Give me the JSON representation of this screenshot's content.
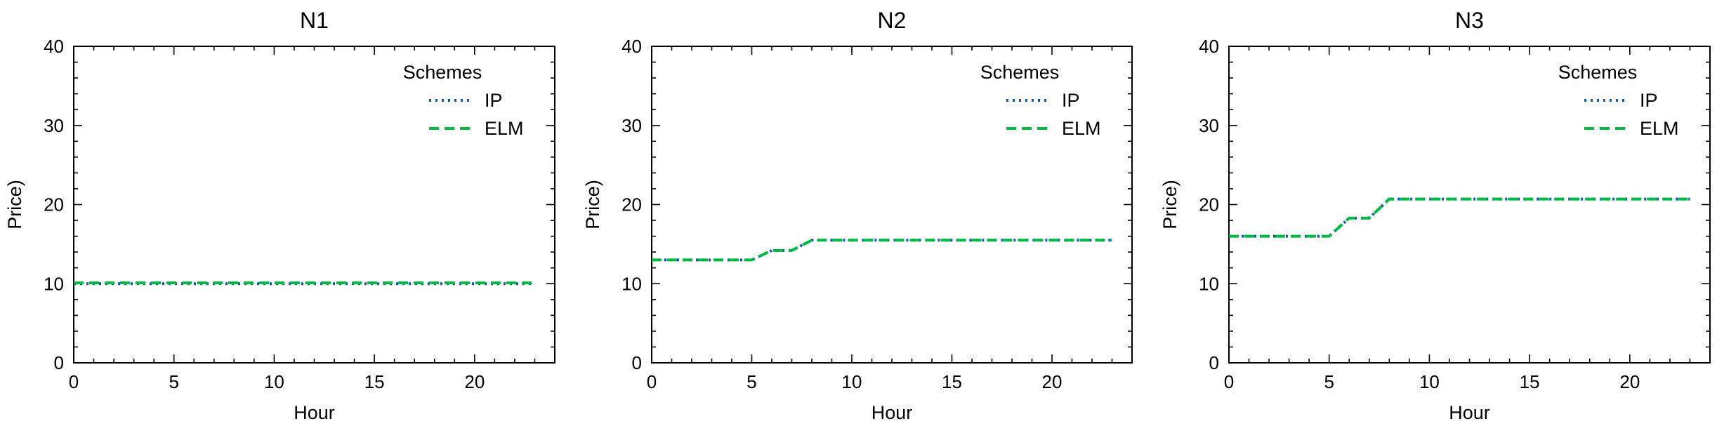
{
  "chart_data": [
    {
      "type": "line",
      "title": "N1",
      "xlabel": "Hour",
      "ylabel": "Price)",
      "xlim": [
        0,
        24
      ],
      "ylim": [
        0,
        40
      ],
      "xticks": [
        0,
        5,
        10,
        15,
        20
      ],
      "yticks": [
        0,
        10,
        20,
        30,
        40
      ],
      "grid": false,
      "legend": {
        "title": "Schemes",
        "placement": "top-right"
      },
      "series": [
        {
          "name": "IP",
          "style": "dotted",
          "color": "#0c5da5",
          "x": [
            0,
            1,
            2,
            3,
            4,
            5,
            6,
            7,
            8,
            9,
            10,
            11,
            12,
            13,
            14,
            15,
            16,
            17,
            18,
            19,
            20,
            21,
            22,
            23
          ],
          "y": [
            10,
            10,
            10,
            10,
            10,
            10,
            10,
            10,
            10,
            10,
            10,
            10,
            10,
            10,
            10,
            10,
            10,
            10,
            10,
            10,
            10,
            10,
            10,
            10
          ]
        },
        {
          "name": "ELM",
          "style": "dashed",
          "color": "#00b945",
          "x": [
            0,
            1,
            2,
            3,
            4,
            5,
            6,
            7,
            8,
            9,
            10,
            11,
            12,
            13,
            14,
            15,
            16,
            17,
            18,
            19,
            20,
            21,
            22,
            23
          ],
          "y": [
            10.1,
            10.1,
            10.1,
            10.1,
            10.1,
            10.1,
            10.1,
            10.1,
            10.1,
            10.1,
            10.1,
            10.1,
            10.1,
            10.1,
            10.1,
            10.1,
            10.1,
            10.1,
            10.1,
            10.1,
            10.1,
            10.1,
            10.1,
            10.1
          ]
        }
      ]
    },
    {
      "type": "line",
      "title": "N2",
      "xlabel": "Hour",
      "ylabel": "Price)",
      "xlim": [
        0,
        24
      ],
      "ylim": [
        0,
        40
      ],
      "xticks": [
        0,
        5,
        10,
        15,
        20
      ],
      "yticks": [
        0,
        10,
        20,
        30,
        40
      ],
      "grid": false,
      "legend": {
        "title": "Schemes",
        "placement": "top-right"
      },
      "series": [
        {
          "name": "IP",
          "style": "dotted",
          "color": "#0c5da5",
          "x": [
            0,
            1,
            2,
            3,
            4,
            5,
            6,
            7,
            8,
            9,
            10,
            11,
            12,
            13,
            14,
            15,
            16,
            17,
            18,
            19,
            20,
            21,
            22,
            23
          ],
          "y": [
            13,
            13,
            13,
            13,
            13,
            13,
            14.2,
            14.2,
            15.5,
            15.5,
            15.5,
            15.5,
            15.5,
            15.5,
            15.5,
            15.5,
            15.5,
            15.5,
            15.5,
            15.5,
            15.5,
            15.5,
            15.5,
            15.5
          ]
        },
        {
          "name": "ELM",
          "style": "dashed",
          "color": "#00b945",
          "x": [
            0,
            1,
            2,
            3,
            4,
            5,
            6,
            7,
            8,
            9,
            10,
            11,
            12,
            13,
            14,
            15,
            16,
            17,
            18,
            19,
            20,
            21,
            22,
            23
          ],
          "y": [
            13,
            13,
            13,
            13,
            13,
            13,
            14.2,
            14.2,
            15.5,
            15.5,
            15.5,
            15.5,
            15.5,
            15.5,
            15.5,
            15.5,
            15.5,
            15.5,
            15.5,
            15.5,
            15.5,
            15.5,
            15.5,
            15.5
          ]
        }
      ]
    },
    {
      "type": "line",
      "title": "N3",
      "xlabel": "Hour",
      "ylabel": "Price)",
      "xlim": [
        0,
        24
      ],
      "ylim": [
        0,
        40
      ],
      "xticks": [
        0,
        5,
        10,
        15,
        20
      ],
      "yticks": [
        0,
        10,
        20,
        30,
        40
      ],
      "grid": false,
      "legend": {
        "title": "Schemes",
        "placement": "top-right"
      },
      "series": [
        {
          "name": "IP",
          "style": "dotted",
          "color": "#0c5da5",
          "x": [
            0,
            1,
            2,
            3,
            4,
            5,
            6,
            7,
            8,
            9,
            10,
            11,
            12,
            13,
            14,
            15,
            16,
            17,
            18,
            19,
            20,
            21,
            22,
            23
          ],
          "y": [
            16,
            16,
            16,
            16,
            16,
            16,
            18.3,
            18.3,
            20.7,
            20.7,
            20.7,
            20.7,
            20.7,
            20.7,
            20.7,
            20.7,
            20.7,
            20.7,
            20.7,
            20.7,
            20.7,
            20.7,
            20.7,
            20.7
          ]
        },
        {
          "name": "ELM",
          "style": "dashed",
          "color": "#00b945",
          "x": [
            0,
            1,
            2,
            3,
            4,
            5,
            6,
            7,
            8,
            9,
            10,
            11,
            12,
            13,
            14,
            15,
            16,
            17,
            18,
            19,
            20,
            21,
            22,
            23
          ],
          "y": [
            16,
            16,
            16,
            16,
            16,
            16,
            18.3,
            18.3,
            20.7,
            20.7,
            20.7,
            20.7,
            20.7,
            20.7,
            20.7,
            20.7,
            20.7,
            20.7,
            20.7,
            20.7,
            20.7,
            20.7,
            20.7,
            20.7
          ]
        }
      ]
    }
  ]
}
